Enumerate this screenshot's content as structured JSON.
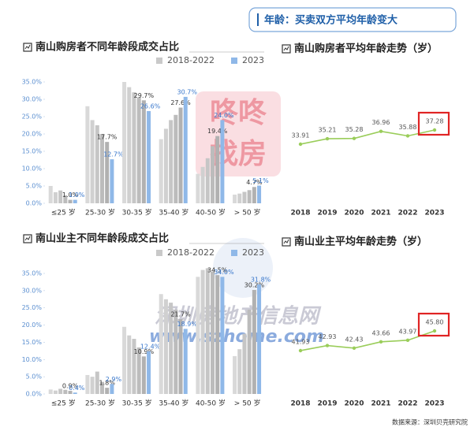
{
  "header": {
    "label": "年龄：买卖双方平均年龄变大"
  },
  "source": "数据来源：深圳贝壳研究院",
  "watermarks": [
    "咚咚",
    "找房",
    "深圳房地产信息网",
    "www.szhome.com"
  ],
  "chart_data": [
    {
      "type": "bar",
      "title": "南山购房者不同年龄段成交占比",
      "categories": [
        "≤25 岁",
        "25-30 岁",
        "30-35 岁",
        "35-40 岁",
        "40-50 岁",
        "> 50 岁"
      ],
      "series": [
        {
          "name": "2018-2022",
          "color": "#c9c9c9",
          "values": [
            [
              5.0,
              3.2,
              3.7,
              2.3,
              1.0
            ],
            [
              28.0,
              24.0,
              22.5,
              20.0,
              17.7
            ],
            [
              35.0,
              33.5,
              32.0,
              30.5,
              29.7
            ],
            [
              18.5,
              21.5,
              24.0,
              25.5,
              27.6
            ],
            [
              8.5,
              10.5,
              13.0,
              16.5,
              19.4
            ],
            [
              2.5,
              2.8,
              3.3,
              3.8,
              4.7
            ]
          ],
          "value_labels": [
            "1.0%",
            "17.7%",
            "29.7%",
            "27.6%",
            "19.4%",
            "4.7%"
          ]
        },
        {
          "name": "2023",
          "color": "#8fb8e8",
          "values": [
            1.0,
            12.7,
            26.6,
            30.7,
            24.0,
            5.1
          ],
          "value_labels": [
            "1.0%",
            "12.7%",
            "26.6%",
            "30.7%",
            "24.0%",
            "5.1%"
          ]
        }
      ],
      "ylim": [
        0,
        35
      ],
      "yticks": [
        {
          "value": 0,
          "label": "0.0%"
        },
        {
          "value": 5,
          "label": "5.0%"
        },
        {
          "value": 10,
          "label": "10.0%"
        },
        {
          "value": 15,
          "label": "15.0%"
        },
        {
          "value": 20,
          "label": "20.0%"
        },
        {
          "value": 25,
          "label": "25.0%"
        },
        {
          "value": 30,
          "label": "30.0%"
        },
        {
          "value": 35,
          "label": "35.0%"
        }
      ]
    },
    {
      "type": "line",
      "title": "南山购房者平均年龄走势（岁）",
      "categories": [
        "2018",
        "2019",
        "2020",
        "2021",
        "2022",
        "2023"
      ],
      "values": [
        33.91,
        35.21,
        35.28,
        36.96,
        35.88,
        37.28
      ],
      "color": "#9acd5a",
      "highlight": 5,
      "highlight_color": "#e02424"
    },
    {
      "type": "bar",
      "title": "南山业主不同年龄段成交占比",
      "categories": [
        "≤25 岁",
        "25-30 岁",
        "30-35 岁",
        "35-40 岁",
        "40-50 岁",
        "> 50 岁"
      ],
      "series": [
        {
          "name": "2018-2022",
          "color": "#c9c9c9",
          "values": [
            [
              1.3,
              1.0,
              1.5,
              1.2,
              0.9
            ],
            [
              5.5,
              5.0,
              6.5,
              3.5,
              1.8
            ],
            [
              19.5,
              17.0,
              16.0,
              13.5,
              10.9
            ],
            [
              29.0,
              27.5,
              26.5,
              24.5,
              21.7
            ],
            [
              34.0,
              36.0,
              36.5,
              35.5,
              34.5
            ],
            [
              11.0,
              13.0,
              17.5,
              24.5,
              30.2
            ]
          ],
          "value_labels": [
            "0.9%",
            "1.8%",
            "10.9%",
            "21.7%",
            "34.5%",
            "30.2%"
          ]
        },
        {
          "name": "2023",
          "color": "#8fb8e8",
          "values": [
            0.4,
            2.9,
            12.4,
            18.9,
            34.0,
            31.8
          ],
          "value_labels": [
            "0.4%",
            "2.9%",
            "12.4%",
            "18.9%",
            "34.0%",
            "31.8%"
          ]
        }
      ],
      "ylim": [
        0,
        35
      ],
      "yticks": [
        {
          "value": 0,
          "label": "0.0%"
        },
        {
          "value": 5,
          "label": "5.0%"
        },
        {
          "value": 10,
          "label": "10.0%"
        },
        {
          "value": 15,
          "label": "15.0%"
        },
        {
          "value": 20,
          "label": "20.0%"
        },
        {
          "value": 25,
          "label": "25.0%"
        },
        {
          "value": 30,
          "label": "30.0%"
        },
        {
          "value": 35,
          "label": "35.0%"
        }
      ]
    },
    {
      "type": "line",
      "title": "南山业主平均年龄走势（岁）",
      "categories": [
        "2018",
        "2019",
        "2020",
        "2021",
        "2022",
        "2023"
      ],
      "values": [
        41.93,
        42.93,
        42.43,
        43.66,
        43.97,
        45.8
      ],
      "value_labels": [
        "41.93",
        "42.93",
        "42.43",
        "43.66",
        "43.97",
        "45.80"
      ],
      "color": "#9acd5a",
      "highlight": 5,
      "highlight_color": "#e02424"
    }
  ]
}
